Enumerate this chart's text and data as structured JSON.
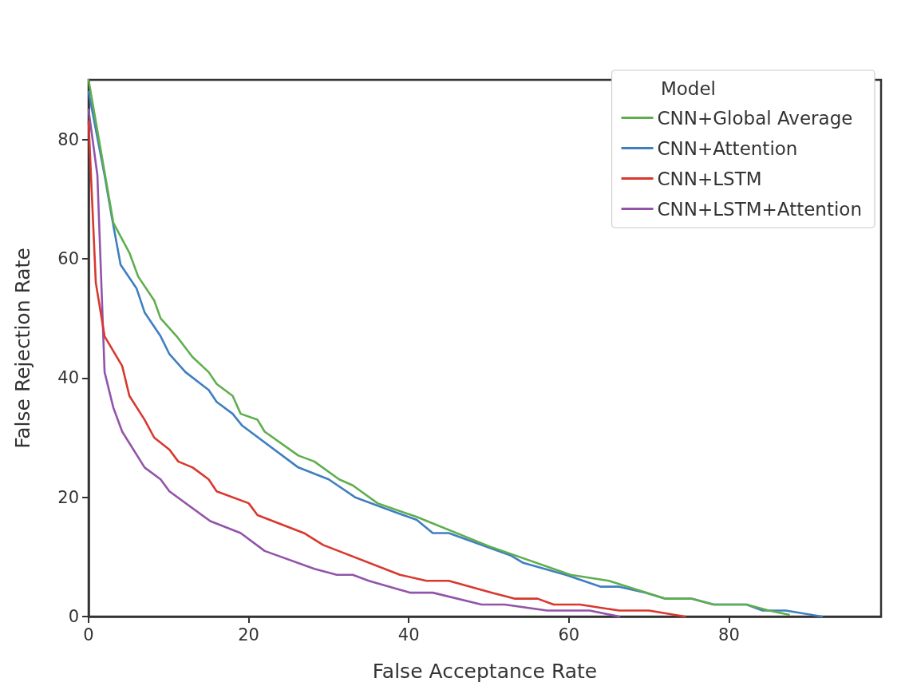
{
  "chart_data": {
    "type": "line",
    "xlabel": "False Acceptance Rate",
    "ylabel": "False Rejection Rate",
    "legend_title": "Model",
    "xlim": [
      0,
      99
    ],
    "ylim": [
      0,
      90
    ],
    "xticks": [
      0,
      20,
      40,
      60,
      80
    ],
    "yticks": [
      0,
      20,
      40,
      60,
      80
    ],
    "grid": false,
    "legend": "top right",
    "marker": "none",
    "line_style": "solid",
    "series": [
      {
        "name": "CNN+Global Average",
        "color": "#5fae4e",
        "x": [
          0,
          3.1,
          5.1,
          6.2,
          8.2,
          9,
          11,
          13,
          15,
          16,
          18,
          19,
          21.1,
          22,
          26.2,
          28.2,
          31.3,
          33,
          36.1,
          41,
          50,
          60.2,
          65,
          72,
          75.3,
          78.1,
          82.2,
          85,
          87.5
        ],
        "values": [
          90,
          66,
          61,
          57,
          53,
          50,
          47,
          43.5,
          41,
          39,
          37,
          34,
          33,
          31,
          27,
          26,
          23,
          22,
          19,
          16.7,
          11.8,
          7,
          6,
          3,
          3,
          2,
          2,
          1,
          0.3
        ]
      },
      {
        "name": "CNN+Attention",
        "color": "#3f7fc1",
        "x": [
          0,
          2,
          2.9,
          4,
          6,
          7,
          9,
          10.1,
          12.1,
          15,
          16,
          18,
          19.2,
          26.2,
          30,
          33.3,
          38.9,
          41,
          43,
          45,
          52.8,
          54.3,
          59.6,
          64,
          66.3,
          69.6,
          72,
          75.3,
          78.1,
          82.2,
          84.2,
          87.1,
          91.6
        ],
        "values": [
          88,
          74,
          67,
          59,
          55,
          51,
          47,
          44,
          41,
          38,
          36,
          34,
          32,
          25,
          23,
          20,
          17.2,
          16.2,
          14,
          14,
          10.2,
          9,
          7,
          5,
          5,
          4,
          3,
          3,
          2,
          2,
          1,
          1,
          0
        ]
      },
      {
        "name": "CNN+LSTM",
        "color": "#d8382e",
        "x": [
          0,
          0.9,
          2,
          4.2,
          5.1,
          7,
          8.2,
          10.1,
          11.2,
          13,
          15,
          16,
          20,
          21.1,
          26.9,
          29.3,
          38.9,
          42.2,
          45,
          50.4,
          53.2,
          56.1,
          58.1,
          61.4,
          66.3,
          70,
          74.5
        ],
        "values": [
          83,
          56,
          47,
          42,
          37,
          33,
          30,
          28,
          26,
          25,
          23,
          21,
          19,
          17,
          14,
          12,
          7,
          6,
          6,
          4,
          3,
          3,
          2,
          2,
          1,
          1,
          0
        ]
      },
      {
        "name": "CNN+LSTM+Attention",
        "color": "#9254a8",
        "x": [
          0,
          1.1,
          2,
          3.1,
          4.2,
          7,
          9,
          10.1,
          15.2,
          19,
          22,
          28.2,
          31,
          33,
          35,
          38.9,
          40.2,
          43,
          49.1,
          52,
          57.3,
          62.6,
          66.3
        ],
        "values": [
          85,
          74,
          41,
          35,
          31,
          25,
          23,
          21,
          16,
          14,
          11,
          8,
          7,
          7,
          6,
          4.5,
          4,
          4,
          2,
          2,
          1,
          1,
          0
        ]
      }
    ]
  }
}
